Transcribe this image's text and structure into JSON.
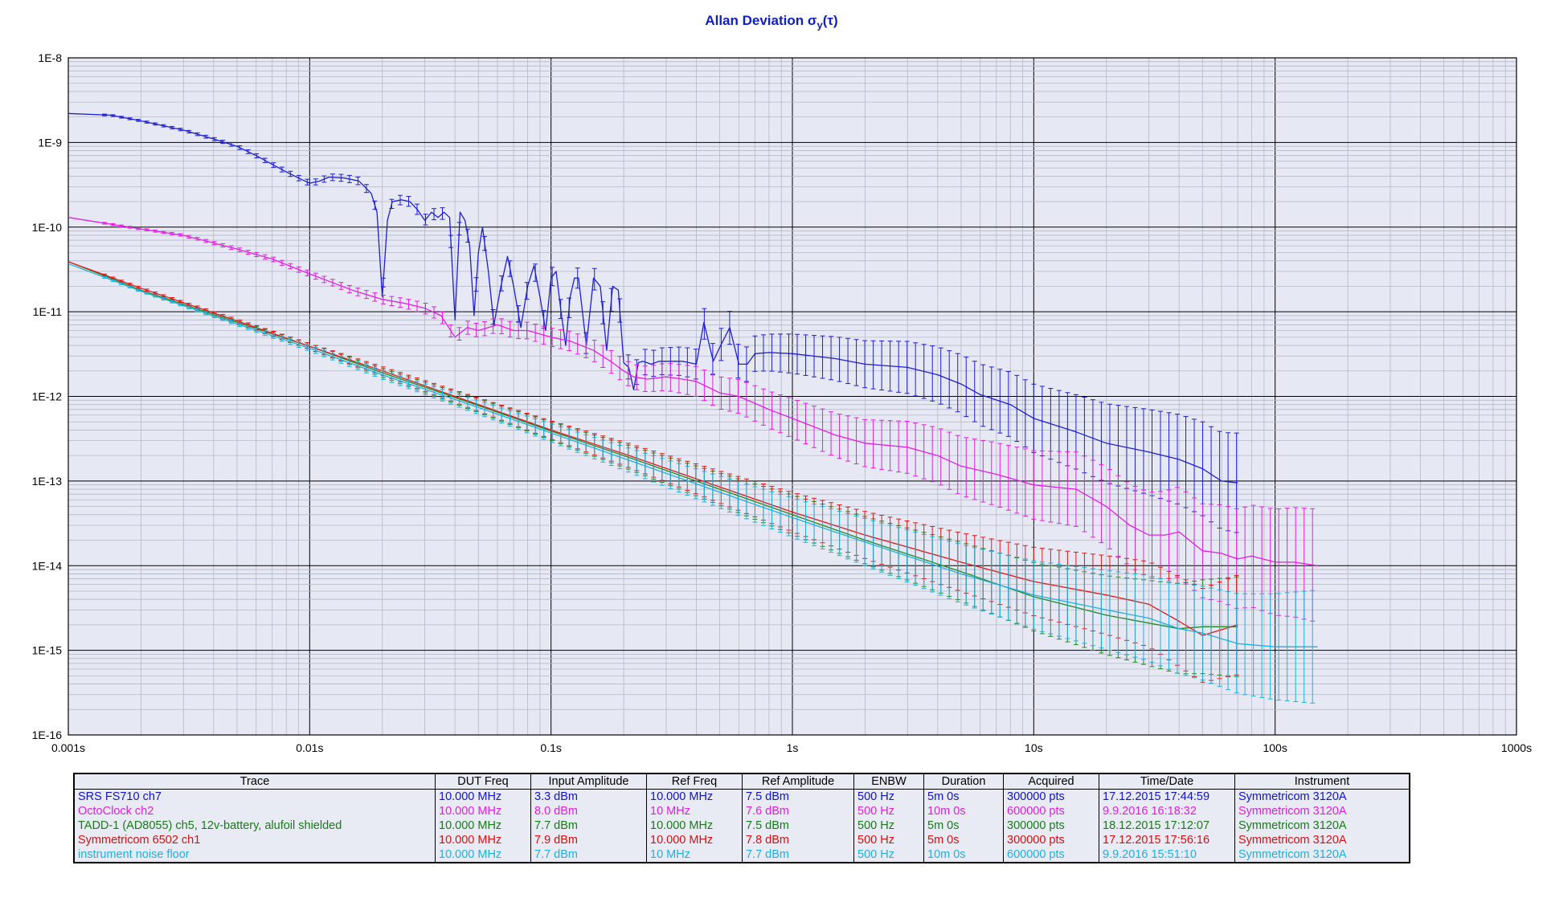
{
  "chart_data": {
    "type": "line",
    "title": "Allan Deviation",
    "title_symbol": "σ",
    "title_sub": "y",
    "title_tail": "(τ)",
    "x_scale": "log",
    "y_scale": "log",
    "xlim": [
      0.001,
      1000
    ],
    "ylim": [
      1e-16,
      1e-08
    ],
    "x_tick_labels": [
      "0.001s",
      "0.01s",
      "0.1s",
      "1s",
      "10s",
      "100s",
      "1000s"
    ],
    "y_tick_labels": [
      "1E-8",
      "1E-9",
      "1E-10",
      "1E-11",
      "1E-12",
      "1E-13",
      "1E-14",
      "1E-15",
      "1E-16"
    ],
    "grid": true,
    "plot_background": "#e6e8f4",
    "series": [
      {
        "name": "SRS FS710 ch7",
        "color": "#1f1fcf",
        "x": [
          0.001,
          0.0015,
          0.002,
          0.003,
          0.004,
          0.005,
          0.006,
          0.007,
          0.008,
          0.009,
          0.01,
          0.011,
          0.012,
          0.014,
          0.016,
          0.018,
          0.019,
          0.02,
          0.021,
          0.022,
          0.024,
          0.026,
          0.028,
          0.03,
          0.032,
          0.034,
          0.036,
          0.038,
          0.04,
          0.042,
          0.044,
          0.046,
          0.048,
          0.05,
          0.052,
          0.055,
          0.058,
          0.062,
          0.066,
          0.07,
          0.075,
          0.08,
          0.085,
          0.09,
          0.095,
          0.1,
          0.105,
          0.11,
          0.115,
          0.12,
          0.125,
          0.13,
          0.14,
          0.15,
          0.16,
          0.17,
          0.18,
          0.19,
          0.2,
          0.21,
          0.22,
          0.23,
          0.24,
          0.26,
          0.28,
          0.3,
          0.35,
          0.4,
          0.43,
          0.47,
          0.5,
          0.55,
          0.6,
          0.65,
          0.7,
          0.8,
          1,
          1.5,
          2,
          3,
          4,
          5,
          6,
          8,
          10,
          15,
          20,
          30,
          40,
          50,
          60,
          70
        ],
        "y": [
          2.2e-09,
          2.1e-09,
          1.8e-09,
          1.4e-09,
          1.1e-09,
          9e-10,
          7e-10,
          5.5e-10,
          4.5e-10,
          3.8e-10,
          3.3e-10,
          3.5e-10,
          3.9e-10,
          3.8e-10,
          3.5e-10,
          2.5e-10,
          1.5e-10,
          1.5e-11,
          1.2e-10,
          2e-10,
          2.1e-10,
          2e-10,
          1.6e-10,
          1.2e-10,
          1.5e-10,
          1.3e-10,
          1.5e-10,
          1.3e-10,
          8e-12,
          1.5e-10,
          1.2e-10,
          6e-11,
          9e-12,
          5e-11,
          1e-10,
          3e-11,
          7e-12,
          2e-11,
          4.5e-11,
          2e-11,
          6.5e-12,
          2e-11,
          3.5e-11,
          1.5e-11,
          6e-12,
          2.5e-11,
          3e-11,
          1e-11,
          4e-12,
          1.5e-11,
          2.5e-11,
          2.5e-11,
          4e-12,
          2.5e-11,
          2e-11,
          3.5e-12,
          2e-11,
          1.8e-11,
          2.5e-12,
          2.2e-12,
          1.2e-12,
          2.5e-12,
          2.6e-12,
          2.4e-12,
          2.6e-12,
          2.6e-12,
          2.6e-12,
          2.4e-12,
          7.5e-12,
          2.6e-12,
          3.8e-12,
          6.5e-12,
          2.4e-12,
          2.4e-12,
          3.2e-12,
          3.3e-12,
          3.2e-12,
          2.8e-12,
          2.4e-12,
          2.2e-12,
          1.8e-12,
          1.4e-12,
          1.05e-12,
          8e-13,
          5.5e-13,
          3.8e-13,
          2.8e-13,
          2.2e-13,
          1.8e-13,
          1.4e-13,
          1e-13,
          9.5e-14
        ]
      },
      {
        "name": "OctoClock ch2",
        "color": "#e020e0",
        "x": [
          0.001,
          0.002,
          0.003,
          0.004,
          0.005,
          0.007,
          0.01,
          0.015,
          0.02,
          0.025,
          0.03,
          0.035,
          0.04,
          0.045,
          0.05,
          0.06,
          0.07,
          0.08,
          0.1,
          0.12,
          0.15,
          0.18,
          0.2,
          0.22,
          0.25,
          0.3,
          0.35,
          0.4,
          0.5,
          0.6,
          0.8,
          1,
          1.5,
          2,
          3,
          4,
          5,
          7,
          10,
          15,
          20,
          25,
          30,
          35,
          40,
          50,
          60,
          70,
          80,
          100,
          120,
          150
        ],
        "y": [
          1.3e-10,
          9.5e-11,
          8e-11,
          6.5e-11,
          5.5e-11,
          4.2e-11,
          2.8e-11,
          1.8e-11,
          1.4e-11,
          1.25e-11,
          1.1e-11,
          9e-12,
          5e-12,
          6.5e-12,
          6e-12,
          7e-12,
          6e-12,
          6e-12,
          5e-12,
          4.5e-12,
          3.5e-12,
          2.5e-12,
          2e-12,
          1.7e-12,
          1.6e-12,
          1.7e-12,
          1.6e-12,
          1.5e-12,
          1.1e-12,
          1e-12,
          7e-13,
          5.5e-13,
          3.5e-13,
          2.8e-13,
          2.5e-13,
          2e-13,
          1.5e-13,
          1.2e-13,
          9e-14,
          8e-14,
          5e-14,
          3e-14,
          2.3e-14,
          2.3e-14,
          2.5e-14,
          1.5e-14,
          1.4e-14,
          1.2e-14,
          1.3e-14,
          1.1e-14,
          1.1e-14,
          1e-14
        ]
      },
      {
        "name": "TADD-1 (AD8055) ch5, 12v-battery, alufoil shielded",
        "color": "#1e8a1e",
        "x": [
          0.001,
          0.002,
          0.005,
          0.01,
          0.02,
          0.05,
          0.1,
          0.2,
          0.5,
          1,
          2,
          5,
          10,
          20,
          40,
          50,
          70
        ],
        "y": [
          3.9e-11,
          1.8e-11,
          7.5e-12,
          3.9e-12,
          1.9e-12,
          7.8e-13,
          3.9e-13,
          2e-13,
          8e-14,
          4e-14,
          2e-14,
          8.5e-15,
          4.3e-15,
          2.6e-15,
          1.8e-15,
          1.9e-15,
          1.9e-15
        ]
      },
      {
        "name": "Symmetricom 6502 ch1",
        "color": "#e01818",
        "x": [
          0.001,
          0.002,
          0.005,
          0.01,
          0.02,
          0.05,
          0.1,
          0.2,
          0.5,
          1,
          2,
          5,
          10,
          20,
          30,
          40,
          50,
          70
        ],
        "y": [
          3.9e-11,
          1.9e-11,
          7.8e-12,
          3.9e-12,
          2e-12,
          8e-13,
          4e-13,
          2.1e-13,
          8.5e-14,
          4.3e-14,
          2.3e-14,
          1.1e-14,
          6.5e-15,
          4.5e-15,
          3.5e-15,
          2.2e-15,
          1.5e-15,
          2e-15
        ]
      },
      {
        "name": "instrument noise floor",
        "color": "#20b0e0",
        "x": [
          0.001,
          0.002,
          0.005,
          0.01,
          0.02,
          0.05,
          0.1,
          0.2,
          0.5,
          1,
          2,
          5,
          10,
          20,
          30,
          40,
          50,
          70,
          100,
          150
        ],
        "y": [
          3.7e-11,
          1.75e-11,
          7.2e-12,
          3.7e-12,
          1.8e-12,
          7.4e-13,
          3.7e-13,
          1.85e-13,
          7.4e-14,
          3.7e-14,
          1.9e-14,
          8e-15,
          4.5e-15,
          3e-15,
          2.4e-15,
          1.8e-15,
          1.6e-15,
          1.2e-15,
          1.1e-15,
          1.1e-15
        ]
      }
    ]
  },
  "table": {
    "headers": [
      "Trace",
      "DUT Freq",
      "Input Amplitude",
      "Ref Freq",
      "Ref Amplitude",
      "ENBW",
      "Duration",
      "Acquired",
      "Time/Date",
      "Instrument"
    ],
    "rows": [
      {
        "color": "#1414c8",
        "cells": [
          "SRS FS710 ch7",
          "10.000 MHz",
          "3.3 dBm",
          "10.000 MHz",
          "7.5 dBm",
          "500 Hz",
          "5m 0s",
          "300000 pts",
          "17.12.2015 17:44:59",
          "Symmetricom 3120A"
        ]
      },
      {
        "color": "#e020e0",
        "cells": [
          "OctoClock ch2",
          "10.000 MHz",
          "8.0 dBm",
          "10 MHz",
          "7.6 dBm",
          "500 Hz",
          "10m 0s",
          "600000 pts",
          "9.9.2016 16:18:32",
          "Symmetricom 3120A"
        ]
      },
      {
        "color": "#1a7a1a",
        "cells": [
          "TADD-1 (AD8055) ch5, 12v-battery, alufoil shielded",
          "10.000 MHz",
          "7.7 dBm",
          "10.000 MHz",
          "7.5 dBm",
          "500 Hz",
          "5m 0s",
          "300000 pts",
          "18.12.2015 17:12:07",
          "Symmetricom 3120A"
        ]
      },
      {
        "color": "#d81010",
        "cells": [
          "Symmetricom 6502 ch1",
          "10.000 MHz",
          "7.9 dBm",
          "10.000 MHz",
          "7.8 dBm",
          "500 Hz",
          "5m 0s",
          "300000 pts",
          "17.12.2015 17:56:16",
          "Symmetricom 3120A"
        ]
      },
      {
        "color": "#20b0e0",
        "cells": [
          "instrument noise floor",
          "10.000 MHz",
          "7.7 dBm",
          "10 MHz",
          "7.7 dBm",
          "500 Hz",
          "10m 0s",
          "600000 pts",
          "9.9.2016 15:51:10",
          "Symmetricom 3120A"
        ]
      }
    ]
  }
}
